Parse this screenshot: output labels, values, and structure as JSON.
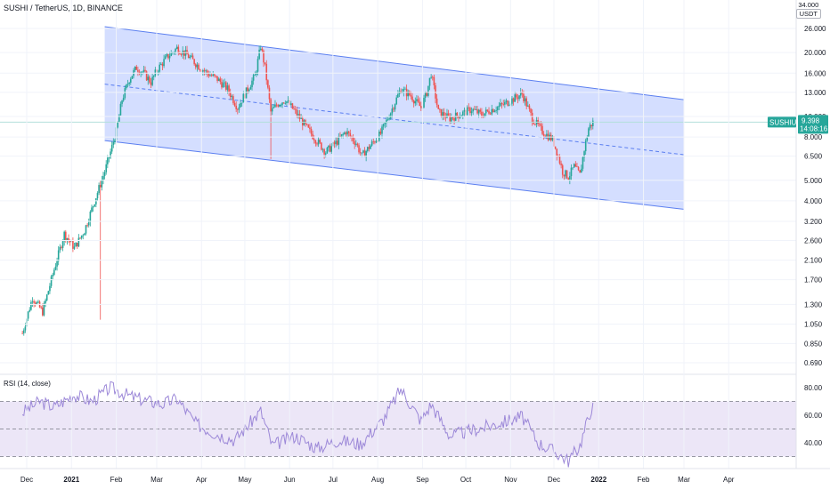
{
  "header": {
    "title": "SUSHI / TetherUS, 1D, BINANCE",
    "currency": "USDT",
    "top_price_label": "34.000"
  },
  "ticker": {
    "symbol": "SUSHIUSDT",
    "last_price": "9.398",
    "countdown": "14:08:16",
    "color": "#26a69a"
  },
  "colors": {
    "up": "#26a69a",
    "down": "#ef5350",
    "channel_fill": "#cdd8ff",
    "channel_line": "#5b7ff0",
    "rsi_line": "#9c88d8",
    "rsi_band": "#ece6f7"
  },
  "rsi": {
    "title": "RSI (14, close)",
    "ticks": [
      "80.00",
      "60.00",
      "40.00"
    ]
  },
  "chart_data": [
    {
      "type": "candlestick",
      "title": "SUSHI / TetherUS, 1D, BINANCE",
      "y_scale": "log",
      "y_ticks": [
        "26.000",
        "20.000",
        "16.000",
        "13.000",
        "10.000",
        "8.000",
        "6.500",
        "5.000",
        "4.000",
        "3.200",
        "2.600",
        "2.100",
        "1.700",
        "1.300",
        "1.050",
        "0.850",
        "0.690"
      ],
      "x_ticks": [
        "Dec",
        "2021",
        "Feb",
        "Mar",
        "Apr",
        "May",
        "Jun",
        "Jul",
        "Aug",
        "Sep",
        "Oct",
        "Nov",
        "Dec",
        "2022",
        "Feb",
        "Mar",
        "Apr"
      ],
      "price_path": [
        {
          "date": "2020-11-28",
          "price": 0.95
        },
        {
          "date": "2020-12-05",
          "price": 1.4
        },
        {
          "date": "2020-12-12",
          "price": 1.2
        },
        {
          "date": "2020-12-20",
          "price": 1.9
        },
        {
          "date": "2020-12-27",
          "price": 2.8
        },
        {
          "date": "2021-01-03",
          "price": 2.4
        },
        {
          "date": "2021-01-10",
          "price": 2.9
        },
        {
          "date": "2021-01-17",
          "price": 4.0
        },
        {
          "date": "2021-01-24",
          "price": 5.5
        },
        {
          "date": "2021-01-28",
          "price": 6.8
        },
        {
          "date": "2021-02-01",
          "price": 8.5
        },
        {
          "date": "2021-02-05",
          "price": 12.0
        },
        {
          "date": "2021-02-10",
          "price": 15.0
        },
        {
          "date": "2021-02-15",
          "price": 17.0
        },
        {
          "date": "2021-02-20",
          "price": 16.0
        },
        {
          "date": "2021-02-25",
          "price": 14.5
        },
        {
          "date": "2021-03-01",
          "price": 16.5
        },
        {
          "date": "2021-03-08",
          "price": 19.0
        },
        {
          "date": "2021-03-15",
          "price": 21.0
        },
        {
          "date": "2021-03-22",
          "price": 19.5
        },
        {
          "date": "2021-03-29",
          "price": 17.5
        },
        {
          "date": "2021-04-05",
          "price": 16.0
        },
        {
          "date": "2021-04-12",
          "price": 15.0
        },
        {
          "date": "2021-04-19",
          "price": 13.5
        },
        {
          "date": "2021-04-26",
          "price": 11.0
        },
        {
          "date": "2021-05-03",
          "price": 13.5
        },
        {
          "date": "2021-05-08",
          "price": 15.5
        },
        {
          "date": "2021-05-12",
          "price": 21.5
        },
        {
          "date": "2021-05-15",
          "price": 17.0
        },
        {
          "date": "2021-05-19",
          "price": 10.5
        },
        {
          "date": "2021-05-24",
          "price": 11.5
        },
        {
          "date": "2021-05-29",
          "price": 12.0
        },
        {
          "date": "2021-06-05",
          "price": 10.5
        },
        {
          "date": "2021-06-12",
          "price": 9.0
        },
        {
          "date": "2021-06-19",
          "price": 7.8
        },
        {
          "date": "2021-06-26",
          "price": 6.8
        },
        {
          "date": "2021-07-03",
          "price": 7.5
        },
        {
          "date": "2021-07-10",
          "price": 8.5
        },
        {
          "date": "2021-07-17",
          "price": 7.5
        },
        {
          "date": "2021-07-21",
          "price": 6.5
        },
        {
          "date": "2021-07-27",
          "price": 7.3
        },
        {
          "date": "2021-08-03",
          "price": 8.3
        },
        {
          "date": "2021-08-10",
          "price": 10.5
        },
        {
          "date": "2021-08-17",
          "price": 13.5
        },
        {
          "date": "2021-08-24",
          "price": 12.5
        },
        {
          "date": "2021-08-31",
          "price": 11.0
        },
        {
          "date": "2021-09-04",
          "price": 13.0
        },
        {
          "date": "2021-09-07",
          "price": 16.0
        },
        {
          "date": "2021-09-12",
          "price": 10.5
        },
        {
          "date": "2021-09-20",
          "price": 9.8
        },
        {
          "date": "2021-09-28",
          "price": 10.3
        },
        {
          "date": "2021-10-05",
          "price": 10.8
        },
        {
          "date": "2021-10-12",
          "price": 10.2
        },
        {
          "date": "2021-10-19",
          "price": 10.8
        },
        {
          "date": "2021-10-26",
          "price": 11.3
        },
        {
          "date": "2021-11-02",
          "price": 12.0
        },
        {
          "date": "2021-11-09",
          "price": 12.8
        },
        {
          "date": "2021-11-16",
          "price": 9.8
        },
        {
          "date": "2021-11-23",
          "price": 8.5
        },
        {
          "date": "2021-11-30",
          "price": 7.8
        },
        {
          "date": "2021-12-04",
          "price": 6.5
        },
        {
          "date": "2021-12-07",
          "price": 5.5
        },
        {
          "date": "2021-12-11",
          "price": 5.2
        },
        {
          "date": "2021-12-15",
          "price": 5.8
        },
        {
          "date": "2021-12-19",
          "price": 5.3
        },
        {
          "date": "2021-12-22",
          "price": 7.0
        },
        {
          "date": "2021-12-25",
          "price": 8.8
        },
        {
          "date": "2021-12-28",
          "price": 9.398
        }
      ],
      "channel": {
        "upper": [
          {
            "date": "2021-01-24",
            "price": 26.5
          },
          {
            "date": "2022-03-01",
            "price": 12.0
          }
        ],
        "mid": [
          {
            "date": "2021-01-24",
            "price": 14.2
          },
          {
            "date": "2022-03-01",
            "price": 6.6
          }
        ],
        "lower": [
          {
            "date": "2021-01-24",
            "price": 7.7
          },
          {
            "date": "2022-03-01",
            "price": 3.65
          }
        ]
      },
      "last_price": 9.398
    },
    {
      "type": "line",
      "title": "RSI (14, close)",
      "y_ticks": [
        "80.00",
        "60.00",
        "40.00"
      ],
      "levels": {
        "overbought": 70,
        "middle": 50,
        "oversold": 30
      },
      "rsi_path": [
        {
          "date": "2020-11-28",
          "value": 62
        },
        {
          "date": "2020-12-10",
          "value": 70
        },
        {
          "date": "2020-12-20",
          "value": 66
        },
        {
          "date": "2021-01-03",
          "value": 75
        },
        {
          "date": "2021-01-15",
          "value": 70
        },
        {
          "date": "2021-01-28",
          "value": 80
        },
        {
          "date": "2021-02-10",
          "value": 74
        },
        {
          "date": "2021-02-20",
          "value": 71
        },
        {
          "date": "2021-03-05",
          "value": 68
        },
        {
          "date": "2021-03-15",
          "value": 72
        },
        {
          "date": "2021-03-28",
          "value": 54
        },
        {
          "date": "2021-04-10",
          "value": 47
        },
        {
          "date": "2021-04-24",
          "value": 42
        },
        {
          "date": "2021-05-12",
          "value": 63
        },
        {
          "date": "2021-05-20",
          "value": 38
        },
        {
          "date": "2021-06-05",
          "value": 45
        },
        {
          "date": "2021-06-20",
          "value": 36
        },
        {
          "date": "2021-07-05",
          "value": 42
        },
        {
          "date": "2021-07-20",
          "value": 39
        },
        {
          "date": "2021-08-05",
          "value": 57
        },
        {
          "date": "2021-08-17",
          "value": 79
        },
        {
          "date": "2021-08-31",
          "value": 56
        },
        {
          "date": "2021-09-07",
          "value": 68
        },
        {
          "date": "2021-09-20",
          "value": 45
        },
        {
          "date": "2021-10-05",
          "value": 49
        },
        {
          "date": "2021-10-20",
          "value": 53
        },
        {
          "date": "2021-11-09",
          "value": 59
        },
        {
          "date": "2021-11-20",
          "value": 40
        },
        {
          "date": "2021-12-04",
          "value": 32
        },
        {
          "date": "2021-12-11",
          "value": 27
        },
        {
          "date": "2021-12-19",
          "value": 38
        },
        {
          "date": "2021-12-28",
          "value": 69
        }
      ]
    }
  ]
}
